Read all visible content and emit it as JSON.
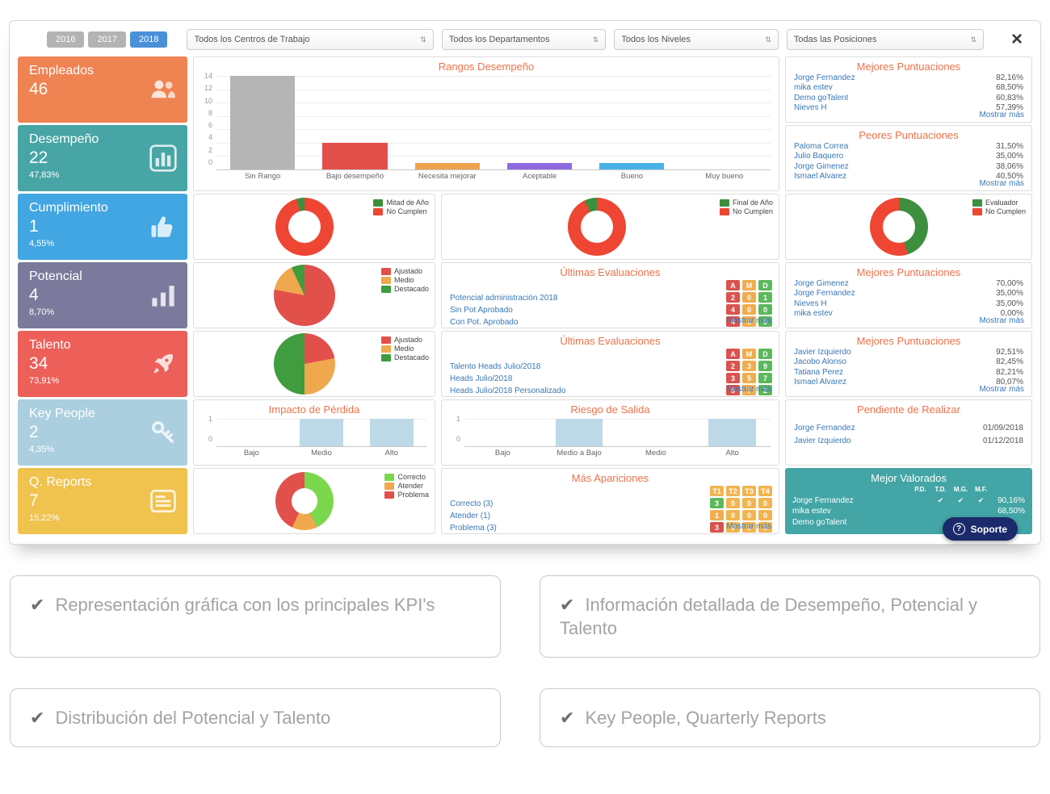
{
  "topbar": {
    "years": [
      {
        "label": "2016",
        "active": false
      },
      {
        "label": "2017",
        "active": false
      },
      {
        "label": "2018",
        "active": true
      }
    ],
    "selects": [
      {
        "value": "Todos los Centros de Trabajo"
      },
      {
        "value": "Todos los Departamentos"
      },
      {
        "value": "Todos los Niveles"
      },
      {
        "value": "Todas las Posiciones"
      }
    ],
    "close_label": "×"
  },
  "kpis": [
    {
      "title": "Empleados",
      "value": "46",
      "percent": "",
      "color": "#ef8352",
      "icon": "people-icon"
    },
    {
      "title": "Desempeño",
      "value": "22",
      "percent": "47,83%",
      "color": "#48a5a5",
      "icon": "bar-chart-icon"
    },
    {
      "title": "Cumplimiento",
      "value": "1",
      "percent": "4,55%",
      "color": "#41a6e1",
      "icon": "thumbs-up-icon"
    },
    {
      "title": "Potencial",
      "value": "4",
      "percent": "8,70%",
      "color": "#7b7a9c",
      "icon": "signal-icon"
    },
    {
      "title": "Talento",
      "value": "34",
      "percent": "73,91%",
      "color": "#ed5f59",
      "icon": "rocket-icon"
    },
    {
      "title": "Key People",
      "value": "2",
      "percent": "4,35%",
      "color": "#abcfdf",
      "icon": "key-icon"
    },
    {
      "title": "Q. Reports",
      "value": "7",
      "percent": "15,22%",
      "color": "#f0c24e",
      "icon": "report-icon"
    }
  ],
  "rangos": {
    "type": "bar",
    "title": "Rangos Desempeño",
    "categories": [
      "Sin Rango",
      "Bajo desempeño",
      "Necesita mejorar",
      "Aceptable",
      "Bueno",
      "Muy bueno"
    ],
    "values": [
      14,
      4,
      1,
      1,
      1,
      0
    ],
    "colors": [
      "#b5b5b5",
      "#e2504c",
      "#f0a14c",
      "#8d6ae0",
      "#48b2e8",
      "#5cb85c"
    ],
    "yticks": [
      14,
      12,
      10,
      8,
      6,
      4,
      2,
      0
    ]
  },
  "best_scores": {
    "title": "Mejores Puntuaciones",
    "rows": [
      {
        "name": "Jorge Fernandez",
        "value": "82,16%"
      },
      {
        "name": "mika estev",
        "value": "68,50%"
      },
      {
        "name": "Demo goTalent",
        "value": "60,83%"
      },
      {
        "name": "Nieves H",
        "value": "57,39%"
      }
    ],
    "more": "Mostrar más"
  },
  "worst_scores": {
    "title": "Peores Puntuaciones",
    "rows": [
      {
        "name": "Paloma Correa",
        "value": "31,50%"
      },
      {
        "name": "Julio Baquero",
        "value": "35,00%"
      },
      {
        "name": "Jorge Gimenez",
        "value": "38,06%"
      },
      {
        "name": "Ismael Alvarez",
        "value": "40,50%"
      }
    ],
    "more": "Mostrar más"
  },
  "donuts": {
    "mitad": {
      "type": "donut",
      "legend": [
        {
          "label": "Mitad de Año",
          "color": "#3d8f3d"
        },
        {
          "label": "No Cumplen",
          "color": "#ef4533"
        }
      ],
      "slices": [
        {
          "label": "No Cumplen",
          "value": 95.45,
          "color": "#ef4533"
        },
        {
          "label": "Mitad de Año",
          "value": 4.55,
          "color": "#3d8f3d"
        }
      ]
    },
    "final": {
      "type": "donut",
      "legend": [
        {
          "label": "Final de Año",
          "color": "#3d8f3d"
        },
        {
          "label": "No Cumplen",
          "color": "#ef4533"
        }
      ],
      "slices": [
        {
          "label": "No Cumplen",
          "value": 93,
          "color": "#ef4533"
        },
        {
          "label": "Final de Año",
          "value": 7,
          "color": "#3d8f3d"
        }
      ]
    },
    "evaluador": {
      "type": "donut",
      "legend": [
        {
          "label": "Evaluador",
          "color": "#3d8f3d"
        },
        {
          "label": "No Cumplen",
          "color": "#ef4533"
        }
      ],
      "slices": [
        {
          "label": "Evaluador",
          "value": 45,
          "color": "#3d8f3d"
        },
        {
          "label": "No Cumplen",
          "value": 55,
          "color": "#ef4533"
        }
      ]
    },
    "reports": {
      "type": "donut",
      "legend": [
        {
          "label": "Correcto",
          "color": "#7bd84c"
        },
        {
          "label": "Atender",
          "color": "#f0a84e"
        },
        {
          "label": "Problema",
          "color": "#e2504c"
        }
      ],
      "slices": [
        {
          "label": "Correcto",
          "value": 43,
          "color": "#7bd84c"
        },
        {
          "label": "Atender",
          "value": 14,
          "color": "#f0a84e"
        },
        {
          "label": "Problema",
          "value": 43,
          "color": "#e2504c"
        }
      ]
    }
  },
  "pies": {
    "potencial": {
      "type": "pie",
      "legend": [
        {
          "label": "Ajustado",
          "color": "#e2504c"
        },
        {
          "label": "Medio",
          "color": "#f0a84e"
        },
        {
          "label": "Destacado",
          "color": "#3f9c3f"
        }
      ],
      "slices": [
        {
          "label": "Ajustado",
          "value": 78,
          "color": "#e2504c"
        },
        {
          "label": "Medio",
          "value": 15,
          "color": "#f0a84e"
        },
        {
          "label": "Destacado",
          "value": 7,
          "color": "#3f9c3f"
        }
      ]
    },
    "talento": {
      "type": "pie",
      "legend": [
        {
          "label": "Ajustado",
          "color": "#e2504c"
        },
        {
          "label": "Medio",
          "color": "#f0a84e"
        },
        {
          "label": "Destacado",
          "color": "#3f9c3f"
        }
      ],
      "slices": [
        {
          "label": "Ajustado",
          "value": 22,
          "color": "#e2504c"
        },
        {
          "label": "Medio",
          "value": 28,
          "color": "#f0a84e"
        },
        {
          "label": "Destacado",
          "value": 50,
          "color": "#3f9c3f"
        }
      ]
    }
  },
  "eval_potencial": {
    "title": "Últimas Evaluaciones",
    "cols": [
      {
        "label": "A",
        "color": "#d9534f"
      },
      {
        "label": "M",
        "color": "#f0ad4e"
      },
      {
        "label": "D",
        "color": "#5cb85c"
      }
    ],
    "rows": [
      {
        "name": "Potencial administración 2018",
        "values": [
          2,
          0,
          1
        ]
      },
      {
        "name": "Sin Pot Aprobado",
        "values": [
          4,
          0,
          0
        ]
      },
      {
        "name": "Con Pot. Aprobado",
        "values": [
          4,
          0,
          0
        ]
      }
    ],
    "more": "Mostrar más"
  },
  "best_potencial": {
    "title": "Mejores Puntuaciones",
    "rows": [
      {
        "name": "Jorge Gimenez",
        "value": "70,00%"
      },
      {
        "name": "Jorge Fernandez",
        "value": "35,00%"
      },
      {
        "name": "Nieves H",
        "value": "35,00%"
      },
      {
        "name": "mika estev",
        "value": "0,00%"
      }
    ],
    "more": "Mostrar más"
  },
  "eval_talento": {
    "title": "Últimas Evaluaciones",
    "cols": [
      {
        "label": "A",
        "color": "#d9534f"
      },
      {
        "label": "M",
        "color": "#f0ad4e"
      },
      {
        "label": "D",
        "color": "#5cb85c"
      }
    ],
    "rows": [
      {
        "name": "Talento Heads Julio/2018",
        "values": [
          2,
          3,
          9
        ]
      },
      {
        "name": "Heads Julio/2018",
        "values": [
          3,
          5,
          7
        ]
      },
      {
        "name": "Heads Julio/2018 Personalizado",
        "values": [
          5,
          7,
          2
        ]
      }
    ],
    "more": "Mostrar más"
  },
  "best_talento": {
    "title": "Mejores Puntuaciones",
    "rows": [
      {
        "name": "Javier Izquierdo",
        "value": "92,51%"
      },
      {
        "name": "Jacobo Alonso",
        "value": "82,45%"
      },
      {
        "name": "Tatiana Perez",
        "value": "82,21%"
      },
      {
        "name": "Ismael Alvarez",
        "value": "80,07%"
      }
    ],
    "more": "Mostrar más"
  },
  "impacto": {
    "type": "bar",
    "title": "Impacto de Pérdida",
    "categories": [
      "Bajo",
      "Medio",
      "Alto"
    ],
    "values": [
      0,
      1,
      1
    ],
    "colors": "#bdd9e8",
    "yticks": [
      1,
      0
    ]
  },
  "riesgo": {
    "type": "bar",
    "title": "Riesgo de Salida",
    "categories": [
      "Bajo",
      "Medio a Bajo",
      "Medio",
      "Alto"
    ],
    "values": [
      0,
      1,
      0,
      1
    ],
    "colors": "#bdd9e8",
    "yticks": [
      1,
      0
    ]
  },
  "pendiente": {
    "title": "Pendiente de Realizar",
    "rows": [
      {
        "name": "Jorge Fernandez",
        "date": "01/09/2018"
      },
      {
        "name": "Javier Izquierdo",
        "date": "01/12/2018"
      }
    ]
  },
  "apariciones": {
    "title": "Más Apariciones",
    "cols": [
      {
        "label": "T1",
        "color": "#f2b44e"
      },
      {
        "label": "T2",
        "color": "#f2b44e"
      },
      {
        "label": "T3",
        "color": "#f2b44e"
      },
      {
        "label": "T4",
        "color": "#f2b44e"
      }
    ],
    "rows": [
      {
        "name": "Correcto (3)",
        "values": [
          3,
          0,
          0,
          0
        ],
        "colors": [
          "#5cb85c",
          "#f2b44e",
          "#f2b44e",
          "#f2b44e"
        ]
      },
      {
        "name": "Atender (1)",
        "values": [
          1,
          0,
          0,
          0
        ],
        "colors": [
          "#f0ad4e",
          "#f2b44e",
          "#f2b44e",
          "#f2b44e"
        ]
      },
      {
        "name": "Problema (3)",
        "values": [
          3,
          0,
          0,
          0
        ],
        "colors": [
          "#d9534f",
          "#f2b44e",
          "#f2b44e",
          "#f2b44e"
        ]
      }
    ],
    "more": "Mostrar más"
  },
  "valorados": {
    "title": "Mejor Valorados",
    "bg": "#43a5a5",
    "cols": [
      "P.D.",
      "T.D.",
      "M.G.",
      "M.F."
    ],
    "rows": [
      {
        "name": "Jorge Fernandez",
        "checks": [
          false,
          true,
          true,
          true
        ],
        "percent": "90,16%"
      },
      {
        "name": "mika estev",
        "checks": [
          false,
          false,
          false,
          false
        ],
        "percent": "68,50%"
      },
      {
        "name": "Demo goTalent",
        "checks": [
          false,
          false,
          false,
          true
        ],
        "percent": ""
      }
    ]
  },
  "soporte": {
    "icon": "?",
    "label": "Soporte"
  },
  "features": [
    {
      "text": "Representación gráfica con los principales KPI's"
    },
    {
      "text": "Información detallada de Desempeño, Potencial y Talento"
    },
    {
      "text": "Distribución del Potencial y Talento"
    },
    {
      "text": "Key People, Quarterly Reports"
    }
  ]
}
